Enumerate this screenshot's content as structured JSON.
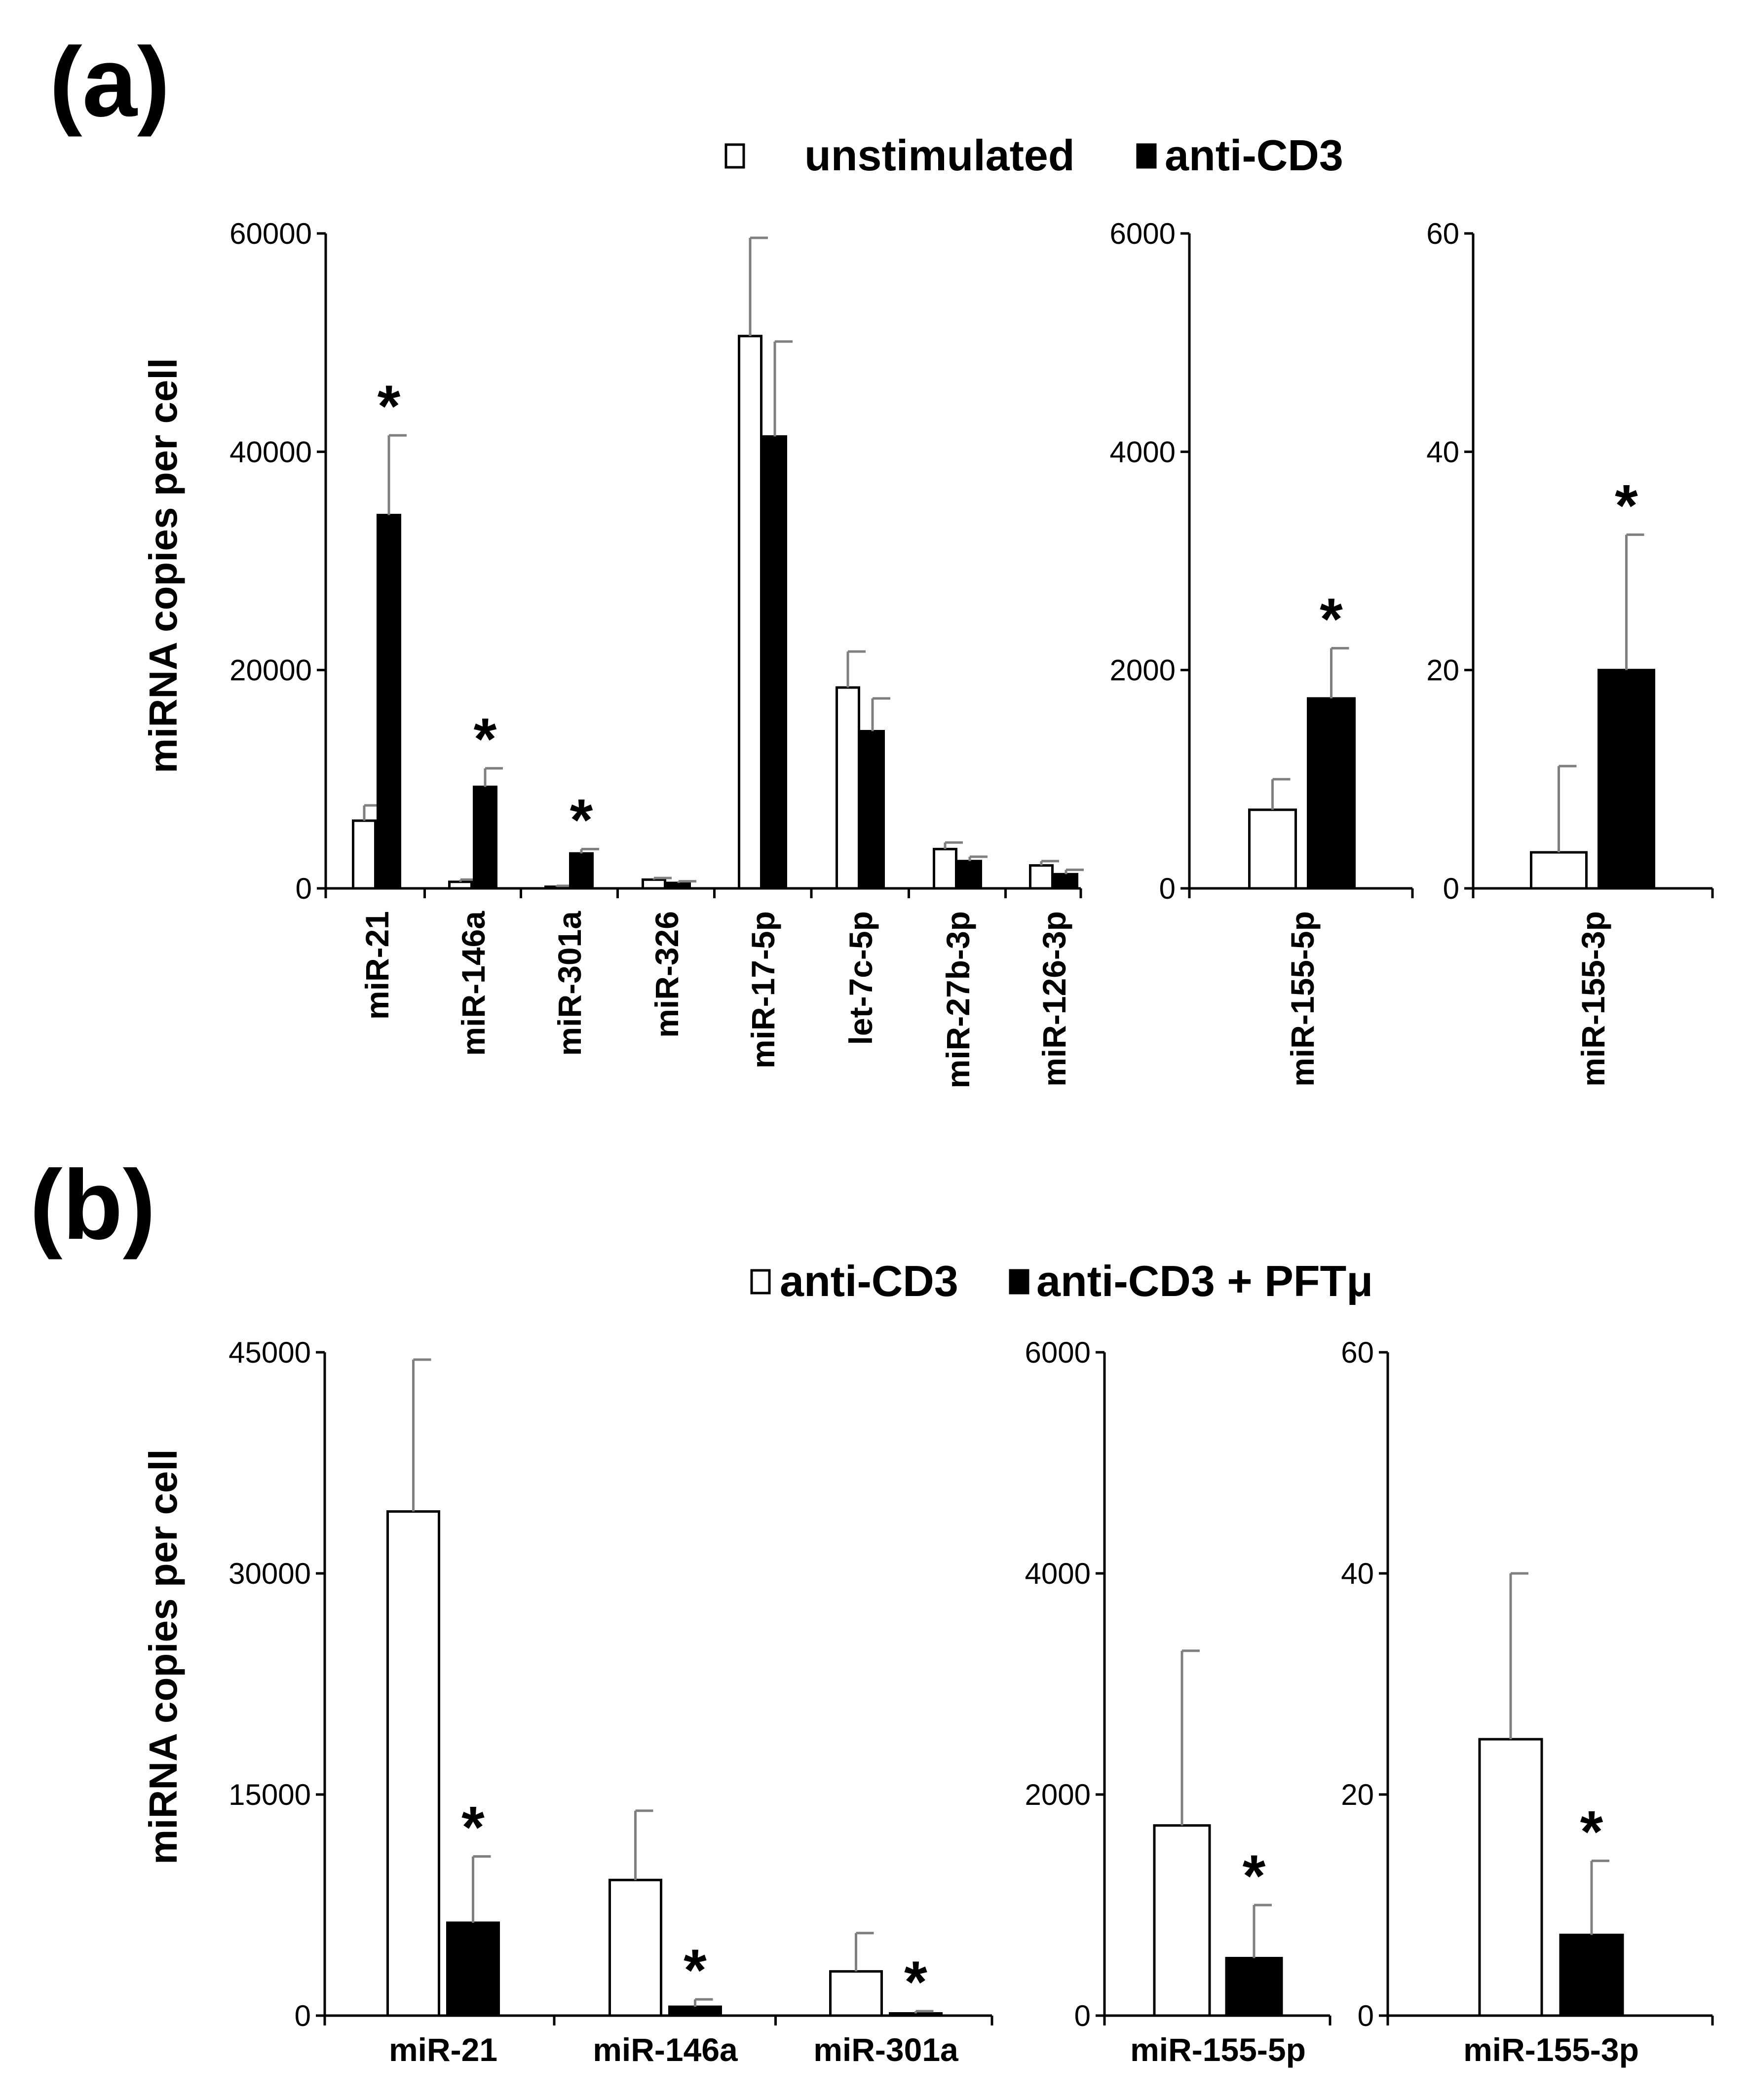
{
  "chart_data": [
    {
      "panel": "(a)",
      "type": "bar",
      "legend": [
        "unstimulated",
        "anti-CD3"
      ],
      "ylabel": "miRNA copies per cell",
      "subplots": [
        {
          "ylim": [
            0,
            60000
          ],
          "yticks": [
            "0",
            "20000",
            "40000",
            "60000"
          ],
          "categories": [
            "miR-21",
            "miR-146a",
            "miR-301a",
            "miR-326",
            "miR-17-5p",
            "let-7c-5p",
            "miR-27b-3p",
            "miR-126-3p"
          ],
          "series": [
            {
              "name": "unstimulated",
              "values": [
                6200,
                600,
                150,
                800,
                50600,
                18400,
                3600,
                2100
              ],
              "errors": [
                1400,
                200,
                80,
                150,
                9000,
                3300,
                600,
                400
              ]
            },
            {
              "name": "anti-CD3",
              "values": [
                34200,
                9300,
                3200,
                500,
                41400,
                14400,
                2500,
                1300
              ],
              "errors": [
                7300,
                1700,
                400,
                150,
                8700,
                3000,
                400,
                400
              ]
            }
          ],
          "significant": [
            true,
            true,
            true,
            false,
            false,
            false,
            false,
            false
          ]
        },
        {
          "ylim": [
            0,
            6000
          ],
          "yticks": [
            "0",
            "2000",
            "4000",
            "6000"
          ],
          "categories": [
            "miR-155-5p"
          ],
          "series": [
            {
              "name": "unstimulated",
              "values": [
                720
              ],
              "errors": [
                280
              ]
            },
            {
              "name": "anti-CD3",
              "values": [
                1740
              ],
              "errors": [
                460
              ]
            }
          ],
          "significant": [
            true
          ]
        },
        {
          "ylim": [
            0,
            60
          ],
          "yticks": [
            "0",
            "20",
            "40",
            "60"
          ],
          "categories": [
            "miR-155-3p"
          ],
          "series": [
            {
              "name": "unstimulated",
              "values": [
                3.3
              ],
              "errors": [
                7.9
              ]
            },
            {
              "name": "anti-CD3",
              "values": [
                20
              ],
              "errors": [
                12.4
              ]
            }
          ],
          "significant": [
            true
          ]
        }
      ]
    },
    {
      "panel": "(b)",
      "type": "bar",
      "legend": [
        "anti-CD3",
        "anti-CD3 + PFTμ"
      ],
      "ylabel": "miRNA copies per cell",
      "subplots": [
        {
          "ylim": [
            0,
            45000
          ],
          "yticks": [
            "0",
            "15000",
            "30000",
            "45000"
          ],
          "categories": [
            "miR-21",
            "miR-146a",
            "miR-301a"
          ],
          "series": [
            {
              "name": "anti-CD3",
              "values": [
                34200,
                9200,
                3000
              ],
              "errors": [
                10300,
                4700,
                2600
              ]
            },
            {
              "name": "anti-CD3 + PFTμ",
              "values": [
                6300,
                600,
                150
              ],
              "errors": [
                4500,
                500,
                150
              ]
            }
          ],
          "significant": [
            true,
            true,
            true
          ]
        },
        {
          "ylim": [
            0,
            6000
          ],
          "yticks": [
            "0",
            "2000",
            "4000",
            "6000"
          ],
          "categories": [
            "miR-155-5p"
          ],
          "series": [
            {
              "name": "anti-CD3",
              "values": [
                1720
              ],
              "errors": [
                1580
              ]
            },
            {
              "name": "anti-CD3 + PFTμ",
              "values": [
                520
              ],
              "errors": [
                480
              ]
            }
          ],
          "significant": [
            true
          ]
        },
        {
          "ylim": [
            0,
            60
          ],
          "yticks": [
            "0",
            "20",
            "40",
            "60"
          ],
          "categories": [
            "miR-155-3p"
          ],
          "series": [
            {
              "name": "anti-CD3",
              "values": [
                25
              ],
              "errors": [
                15
              ]
            },
            {
              "name": "anti-CD3 + PFTμ",
              "values": [
                7.3
              ],
              "errors": [
                6.7
              ]
            }
          ],
          "significant": [
            true
          ]
        }
      ]
    }
  ]
}
